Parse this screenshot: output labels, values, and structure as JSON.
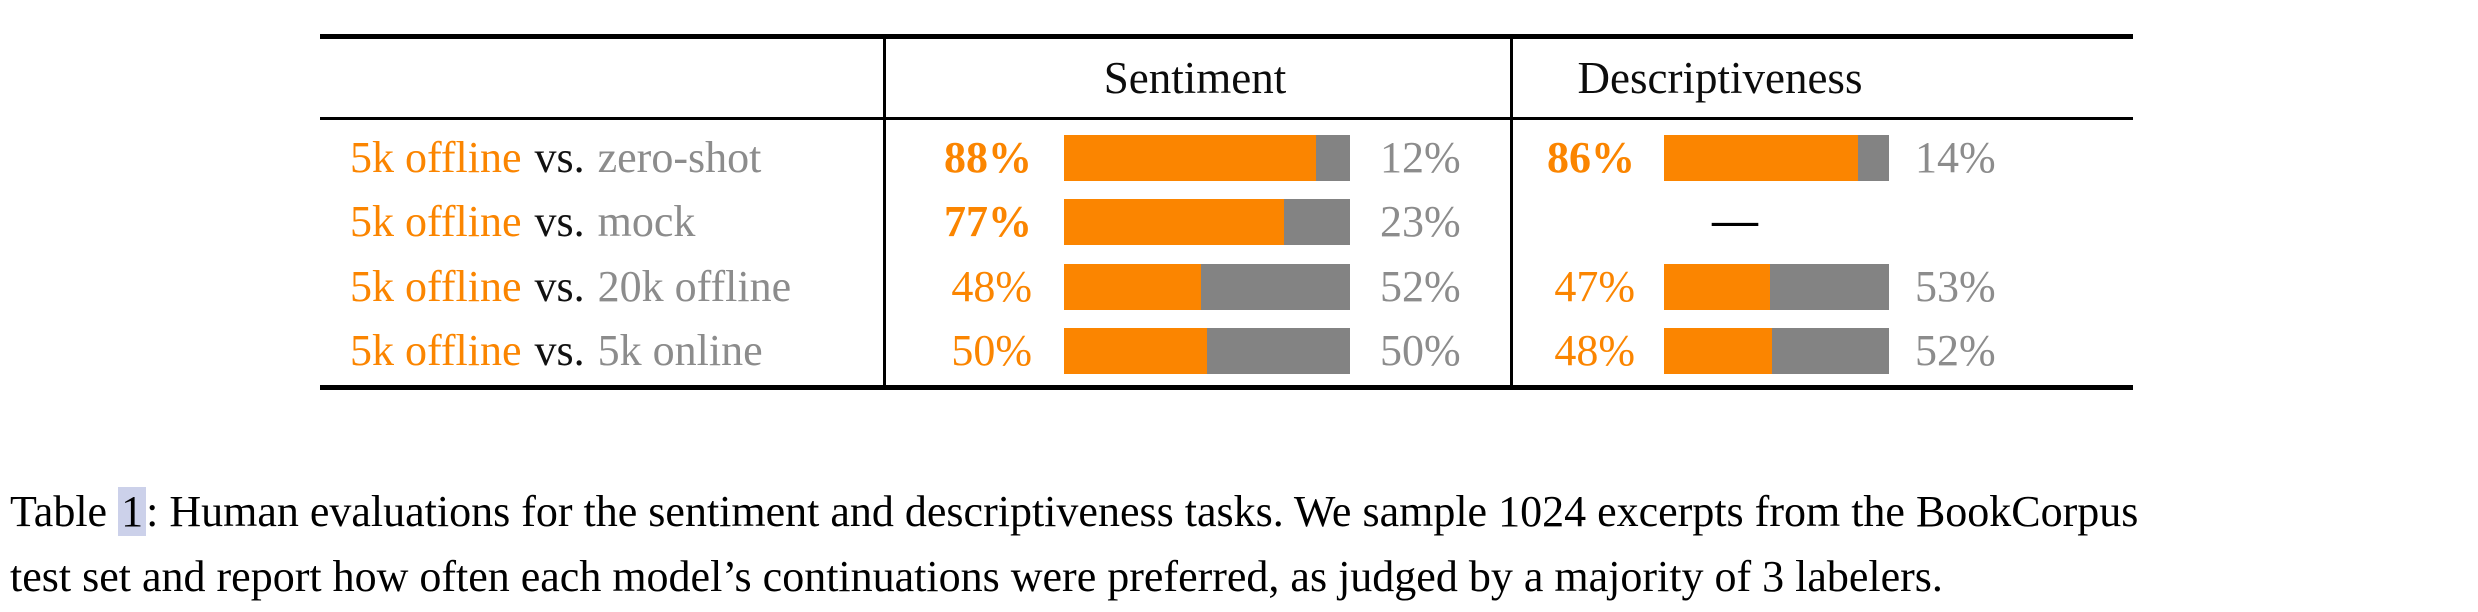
{
  "colors": {
    "orange": "#fb8500",
    "bargray": "#838383",
    "graytext": "#8c8c8c",
    "highlight": "#ccd1ea"
  },
  "table": {
    "headers": {
      "col1": "Sentiment",
      "col2": "Descriptiveness"
    },
    "missing_marker": "—",
    "rows": [
      {
        "model_a": "5k offline",
        "vs": "vs.",
        "model_b": "zero-shot",
        "sentiment": {
          "win": "88%",
          "win_pct": 88,
          "lose": "12%"
        },
        "descriptiveness": {
          "win": "86%",
          "win_pct": 86,
          "lose": "14%"
        }
      },
      {
        "model_a": "5k offline",
        "vs": "vs.",
        "model_b": "mock",
        "sentiment": {
          "win": "77%",
          "win_pct": 77,
          "lose": "23%"
        },
        "descriptiveness": null
      },
      {
        "model_a": "5k offline",
        "vs": "vs.",
        "model_b": "20k offline",
        "sentiment": {
          "win": "48%",
          "win_pct": 48,
          "lose": "52%"
        },
        "descriptiveness": {
          "win": "47%",
          "win_pct": 47,
          "lose": "53%"
        }
      },
      {
        "model_a": "5k offline",
        "vs": "vs.",
        "model_b": "5k online",
        "sentiment": {
          "win": "50%",
          "win_pct": 50,
          "lose": "50%"
        },
        "descriptiveness": {
          "win": "48%",
          "win_pct": 48,
          "lose": "52%"
        }
      }
    ]
  },
  "chart_data": {
    "type": "bar",
    "subtype": "horizontal stacked preference bars (orange = 5k offline preferred, gray = opponent preferred)",
    "categories": [
      "5k offline vs. zero-shot",
      "5k offline vs. mock",
      "5k offline vs. 20k offline",
      "5k offline vs. 5k online"
    ],
    "series": [
      {
        "name": "Sentiment - 5k offline win %",
        "values": [
          88,
          77,
          48,
          50
        ]
      },
      {
        "name": "Sentiment - opponent win %",
        "values": [
          12,
          23,
          52,
          50
        ]
      },
      {
        "name": "Descriptiveness - 5k offline win %",
        "values": [
          86,
          null,
          47,
          48
        ]
      },
      {
        "name": "Descriptiveness - opponent win %",
        "values": [
          14,
          null,
          53,
          52
        ]
      }
    ],
    "title": "Human evaluations for the sentiment and descriptiveness tasks",
    "xlabel": "",
    "ylabel": "",
    "xlim": [
      0,
      100
    ],
    "notes": "Row 2 descriptiveness has no data (em dash). Bold win values: 88%, 77%, 86%."
  },
  "caption": {
    "prefix": "Table ",
    "ref": "1",
    "line1_rest": ": Human evaluations for the sentiment and descriptiveness tasks. We sample 1024 excerpts from the BookCorpus",
    "line2": "test set and report how often each model’s continuations were preferred, as judged by a majority of 3 labelers."
  }
}
